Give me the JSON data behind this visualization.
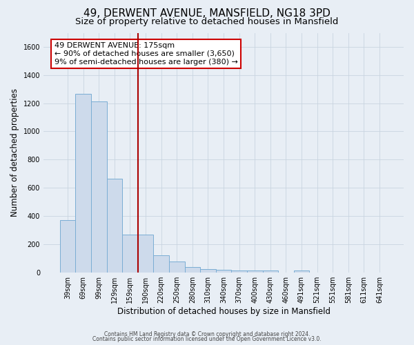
{
  "title": "49, DERWENT AVENUE, MANSFIELD, NG18 3PD",
  "subtitle": "Size of property relative to detached houses in Mansfield",
  "xlabel": "Distribution of detached houses by size in Mansfield",
  "ylabel": "Number of detached properties",
  "categories": [
    "39sqm",
    "69sqm",
    "99sqm",
    "129sqm",
    "159sqm",
    "190sqm",
    "220sqm",
    "250sqm",
    "280sqm",
    "310sqm",
    "340sqm",
    "370sqm",
    "400sqm",
    "430sqm",
    "460sqm",
    "491sqm",
    "521sqm",
    "551sqm",
    "581sqm",
    "611sqm",
    "641sqm"
  ],
  "values": [
    370,
    1265,
    1215,
    665,
    270,
    270,
    120,
    75,
    40,
    25,
    20,
    15,
    14,
    13,
    0,
    13,
    0,
    0,
    0,
    0,
    0
  ],
  "bar_color": "#cddaeb",
  "bar_edge_color": "#7aadd4",
  "vline_x_data": 4.5,
  "vline_color": "#aa0000",
  "annotation_title": "49 DERWENT AVENUE: 175sqm",
  "annotation_line1": "← 90% of detached houses are smaller (3,650)",
  "annotation_line2": "9% of semi-detached houses are larger (380) →",
  "annotation_box_facecolor": "#ffffff",
  "annotation_box_edgecolor": "#cc0000",
  "ylim": [
    0,
    1700
  ],
  "yticks": [
    0,
    200,
    400,
    600,
    800,
    1000,
    1200,
    1400,
    1600
  ],
  "footer1": "Contains HM Land Registry data © Crown copyright and database right 2024.",
  "footer2": "Contains public sector information licensed under the Open Government Licence v3.0.",
  "bg_color": "#e8eef5",
  "plot_bg_color": "#e8eef5",
  "grid_color": "#c8d4e0",
  "title_fontsize": 11,
  "subtitle_fontsize": 9.5,
  "tick_fontsize": 7,
  "ylabel_fontsize": 8.5,
  "xlabel_fontsize": 8.5,
  "footer_fontsize": 5.5,
  "ann_fontsize": 8
}
